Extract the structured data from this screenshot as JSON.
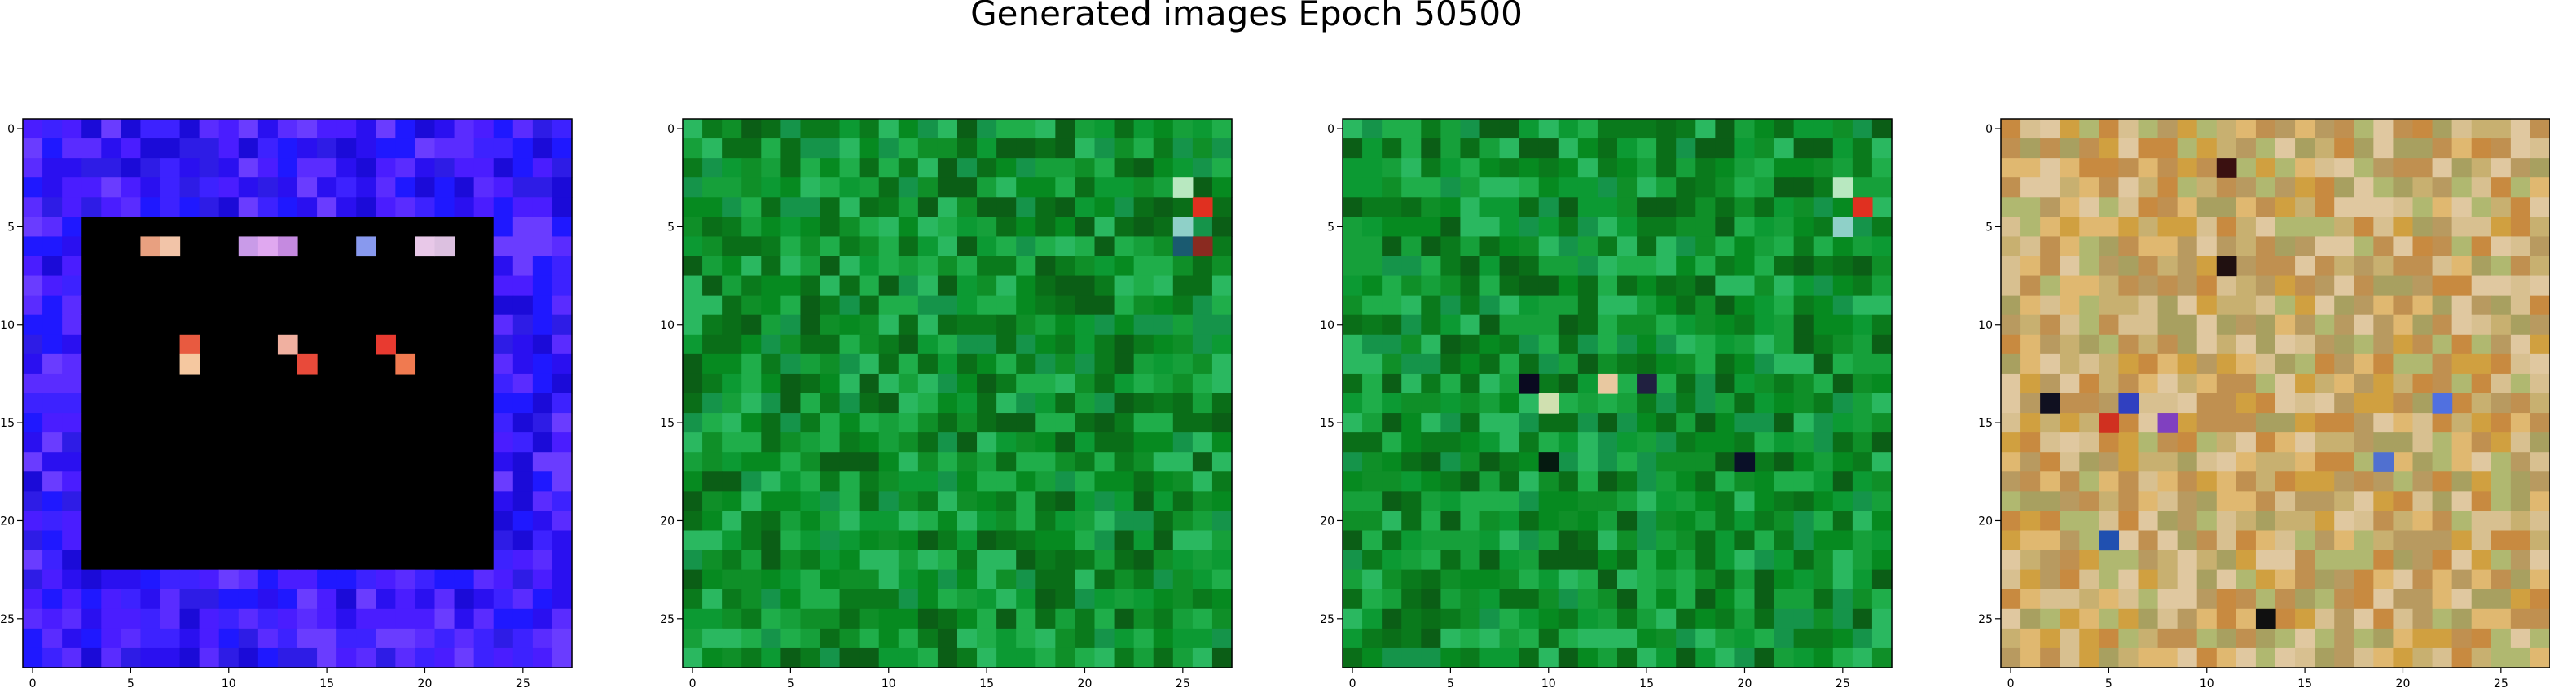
{
  "title": "Generated images Epoch 50500",
  "chart_data": [
    {
      "type": "heatmap",
      "xticks": [
        0,
        5,
        10,
        15,
        20,
        25
      ],
      "yticks": [
        0,
        5,
        10,
        15,
        20,
        25
      ],
      "grid_size": [
        28,
        28
      ],
      "palette": [
        "#2a10f0",
        "#3d22ff",
        "#1b0bd8",
        "#5a2cff",
        "#2e1ce6",
        "#4a1dff",
        "#6a3cff",
        "#1f18ff"
      ],
      "background_color": "#2a10f0",
      "pattern": "blue-frame",
      "inner_color": "#000000",
      "highlight_cells": [
        {
          "row": 6,
          "col": 6,
          "color": "#e8a080"
        },
        {
          "row": 6,
          "col": 7,
          "color": "#f2c4a8"
        },
        {
          "row": 6,
          "col": 11,
          "color": "#c99be8"
        },
        {
          "row": 6,
          "col": 12,
          "color": "#e0a8f0"
        },
        {
          "row": 6,
          "col": 13,
          "color": "#c58ae0"
        },
        {
          "row": 6,
          "col": 17,
          "color": "#8899ee"
        },
        {
          "row": 6,
          "col": 20,
          "color": "#e8c8e8"
        },
        {
          "row": 6,
          "col": 21,
          "color": "#dcc0e0"
        },
        {
          "row": 11,
          "col": 8,
          "color": "#e85a40"
        },
        {
          "row": 12,
          "col": 8,
          "color": "#f5c8a0"
        },
        {
          "row": 11,
          "col": 13,
          "color": "#f0b0a0"
        },
        {
          "row": 12,
          "col": 14,
          "color": "#e84a3a"
        },
        {
          "row": 11,
          "col": 18,
          "color": "#e83a30"
        },
        {
          "row": 12,
          "col": 19,
          "color": "#f07a50"
        }
      ]
    },
    {
      "type": "heatmap",
      "xticks": [
        0,
        5,
        10,
        15,
        20,
        25
      ],
      "yticks": [
        0,
        5,
        10,
        15,
        20,
        25
      ],
      "grid_size": [
        28,
        28
      ],
      "palette": [
        "#0a7a1c",
        "#0f8f28",
        "#068a20",
        "#16a03a",
        "#0a6e18",
        "#1fae4a",
        "#0c9a33",
        "#2ab860",
        "#15944a",
        "#0b5e16"
      ],
      "background_color": "#0a7a1c",
      "pattern": "noise",
      "highlight_cells": [
        {
          "row": 3,
          "col": 25,
          "color": "#b8e8c0"
        },
        {
          "row": 4,
          "col": 26,
          "color": "#e03020"
        },
        {
          "row": 5,
          "col": 25,
          "color": "#8fd0c8"
        },
        {
          "row": 6,
          "col": 25,
          "color": "#1a5a70"
        },
        {
          "row": 6,
          "col": 26,
          "color": "#8a2a20"
        }
      ]
    },
    {
      "type": "heatmap",
      "xticks": [
        0,
        5,
        10,
        15,
        20,
        25
      ],
      "yticks": [
        0,
        5,
        10,
        15,
        20,
        25
      ],
      "grid_size": [
        28,
        28
      ],
      "palette": [
        "#0a7a1c",
        "#0f8f28",
        "#068a20",
        "#16a03a",
        "#0a6e18",
        "#1fae4a",
        "#0c9a33",
        "#2ab860",
        "#15944a",
        "#0b5e16"
      ],
      "background_color": "#0a7a1c",
      "pattern": "noise",
      "highlight_cells": [
        {
          "row": 3,
          "col": 25,
          "color": "#b8e8c0"
        },
        {
          "row": 4,
          "col": 26,
          "color": "#e03020"
        },
        {
          "row": 5,
          "col": 25,
          "color": "#8fd0c8"
        },
        {
          "row": 13,
          "col": 9,
          "color": "#0a0a20"
        },
        {
          "row": 13,
          "col": 13,
          "color": "#e8c8a0"
        },
        {
          "row": 14,
          "col": 10,
          "color": "#d0e0b0"
        },
        {
          "row": 13,
          "col": 15,
          "color": "#202040"
        },
        {
          "row": 17,
          "col": 10,
          "color": "#051a10"
        },
        {
          "row": 17,
          "col": 20,
          "color": "#0a1028"
        }
      ]
    },
    {
      "type": "heatmap",
      "xticks": [
        0,
        5,
        10,
        15,
        20,
        25
      ],
      "yticks": [
        0,
        5,
        10,
        15,
        20,
        25
      ],
      "grid_size": [
        28,
        28
      ],
      "palette": [
        "#c8b070",
        "#d0a040",
        "#b89a60",
        "#e0b870",
        "#c09050",
        "#a8a060",
        "#d8c090",
        "#b0b870",
        "#c88a40",
        "#e0c8a0"
      ],
      "background_color": "#c8b070",
      "pattern": "noise",
      "highlight_cells": [
        {
          "row": 2,
          "col": 11,
          "color": "#3a1010"
        },
        {
          "row": 7,
          "col": 11,
          "color": "#201010"
        },
        {
          "row": 14,
          "col": 2,
          "color": "#101020"
        },
        {
          "row": 14,
          "col": 6,
          "color": "#3040c0"
        },
        {
          "row": 15,
          "col": 5,
          "color": "#d03020"
        },
        {
          "row": 15,
          "col": 8,
          "color": "#8040c0"
        },
        {
          "row": 14,
          "col": 22,
          "color": "#5070e0"
        },
        {
          "row": 17,
          "col": 19,
          "color": "#5070d0"
        },
        {
          "row": 21,
          "col": 5,
          "color": "#2050b0"
        },
        {
          "row": 25,
          "col": 13,
          "color": "#101010"
        }
      ]
    }
  ]
}
